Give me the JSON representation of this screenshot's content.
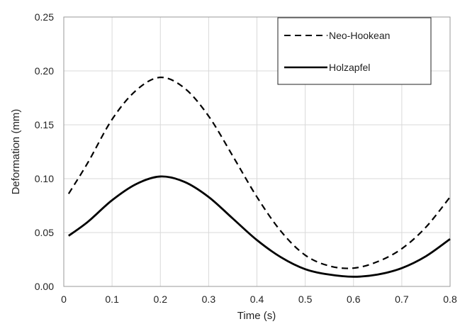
{
  "chart_data": {
    "type": "line",
    "title": "",
    "xlabel": "Time (s)",
    "ylabel": "Deformation (mm)",
    "xlim": [
      0,
      0.8
    ],
    "ylim": [
      0,
      0.25
    ],
    "x_ticks": [
      "0",
      "0.1",
      "0.2",
      "0.3",
      "0.4",
      "0.5",
      "0.6",
      "0.7",
      "0.8"
    ],
    "y_ticks": [
      "0.00",
      "0.05",
      "0.10",
      "0.15",
      "0.20",
      "0.25"
    ],
    "grid": true,
    "legend_position": "top-right",
    "series": [
      {
        "name": "Neo-Hookean",
        "line_style": "dashed",
        "color": "#000000",
        "x": [
          0.01,
          0.05,
          0.1,
          0.15,
          0.2,
          0.25,
          0.3,
          0.35,
          0.4,
          0.45,
          0.5,
          0.55,
          0.6,
          0.65,
          0.7,
          0.75,
          0.8
        ],
        "y": [
          0.086,
          0.115,
          0.155,
          0.182,
          0.194,
          0.184,
          0.158,
          0.121,
          0.083,
          0.051,
          0.029,
          0.019,
          0.017,
          0.023,
          0.035,
          0.055,
          0.083
        ]
      },
      {
        "name": "Holzapfel",
        "line_style": "solid",
        "color": "#000000",
        "x": [
          0.01,
          0.05,
          0.1,
          0.15,
          0.2,
          0.25,
          0.3,
          0.35,
          0.4,
          0.45,
          0.5,
          0.55,
          0.6,
          0.65,
          0.7,
          0.75,
          0.8
        ],
        "y": [
          0.047,
          0.06,
          0.08,
          0.095,
          0.102,
          0.097,
          0.083,
          0.063,
          0.043,
          0.027,
          0.016,
          0.011,
          0.009,
          0.011,
          0.017,
          0.028,
          0.044
        ]
      }
    ]
  }
}
